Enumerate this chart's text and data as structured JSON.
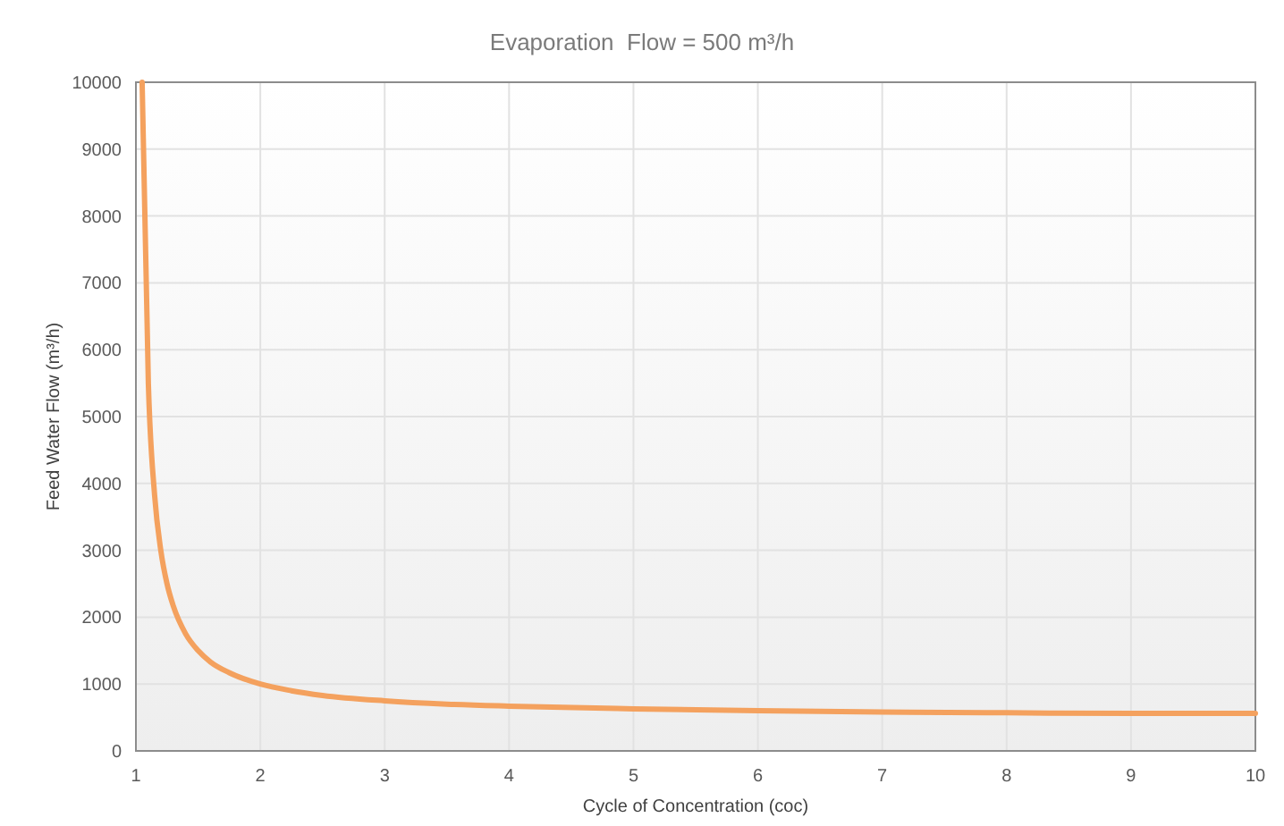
{
  "chart_data": {
    "type": "line",
    "title": "Evaporation  Flow = 500 m³/h",
    "xlabel": "Cycle of Concentration (coc)",
    "ylabel": "Feed Water Flow (m³/h)",
    "x": [
      1.05,
      1.1,
      1.15,
      1.2,
      1.25,
      1.3,
      1.4,
      1.5,
      1.6,
      1.75,
      2,
      2.25,
      2.5,
      3,
      3.5,
      4,
      5,
      6,
      7,
      8,
      9,
      10
    ],
    "series": [
      {
        "color": "#f4a15e",
        "values": [
          10000,
          5500,
          3830,
          3000,
          2500,
          2170,
          1750,
          1500,
          1330,
          1170,
          1000,
          900,
          830,
          750,
          700,
          670,
          630,
          600,
          580,
          570,
          560,
          560
        ]
      }
    ],
    "xlim": [
      1,
      10
    ],
    "xticks": [
      1,
      2,
      3,
      4,
      5,
      6,
      7,
      8,
      9,
      10
    ],
    "ylim": [
      0,
      10000
    ],
    "yticks": [
      0,
      1000,
      2000,
      3000,
      4000,
      5000,
      6000,
      7000,
      8000,
      9000,
      10000
    ],
    "grid": true,
    "marker": "none",
    "line_style": "solid"
  }
}
